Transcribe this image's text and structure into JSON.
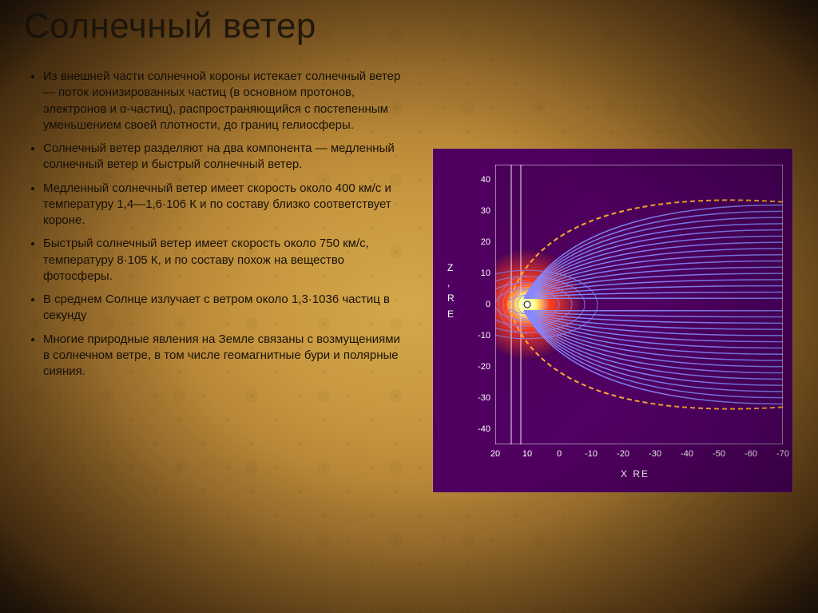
{
  "title": "Солнечный ветер",
  "bullets": [
    "Из внешней части солнечной короны истекает солнечный ветер — поток ионизированных частиц (в основном протонов, электронов и α-частиц), распространяющийся с постепенным уменьшением своей плотности, до границ гелиосферы.",
    " Солнечный ветер разделяют на два компонента — медленный солнечный ветер и быстрый солнечный ветер.",
    "Медленный солнечный ветер имеет скорость около 400 км/с и температуру 1,4—1,6·106 К и по составу близко соответствует короне.",
    "Быстрый солнечный ветер имеет скорость около 750 км/с, температуру 8·105 К, и по составу похож на вещество фотосферы.",
    "В среднем Солнце излучает с ветром около 1,3·1036 частиц в секунду",
    "Многие природные явления на Земле связаны с возмущениями в солнечном ветре, в том числе геомагнитные бури и полярные сияния."
  ],
  "chart": {
    "type": "magnetosphere-field-lines",
    "background_panel_color": "#500060",
    "plot_background": "#4a0058",
    "ytick_values": [
      40,
      30,
      20,
      10,
      0,
      -10,
      -20,
      -30,
      -40
    ],
    "xtick_values": [
      20,
      10,
      0,
      -10,
      -20,
      -30,
      -40,
      -50,
      -60,
      -70
    ],
    "xlim": [
      20,
      -70
    ],
    "ylim": [
      -45,
      45
    ],
    "y_axis_label_lines": [
      "Z",
      ",",
      "R",
      "E"
    ],
    "x_axis_label": "X  RE",
    "axis_fontsize": 11,
    "label_fontsize": 12,
    "tick_color": "#ffffff",
    "earth_center": [
      10,
      0
    ],
    "sun_glow_colors": [
      "#ffffff",
      "#ffff80",
      "#ff4020",
      "#c00020"
    ],
    "sun_glow_radius": 40,
    "field_line_color": "#8888ff",
    "field_line_width": 1.5,
    "bow_shock_color": "#ffaa33",
    "bow_shock_dash": "6,4",
    "bow_shock_width": 2,
    "vertical_ref_lines": [
      20,
      15,
      12
    ],
    "vertical_ref_color": "#ffffff",
    "field_line_tail_extents": [
      2,
      4,
      6,
      8,
      10,
      12,
      14,
      16,
      18,
      20,
      22,
      24,
      26,
      28,
      30,
      32
    ]
  }
}
